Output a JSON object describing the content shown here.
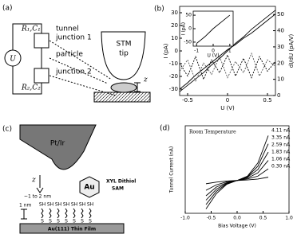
{
  "panel_a": {
    "label": "(a)",
    "source": "U",
    "r1c1": "R₁,C₁",
    "r2c2": "R₂,C₂",
    "tunnel": "tunnel",
    "junction1": "junction 1",
    "particle": "particle",
    "junction2": "junction 2",
    "stm": "STM",
    "tip": "tip",
    "z": "z"
  },
  "panel_c": {
    "label": "(c)",
    "tip": "Pt/Ir",
    "z": "z",
    "gap": "~1 to 2 nm",
    "length": "1 nm",
    "particle": "Au",
    "molecule": "XYL Dithiol",
    "sam": "SAM",
    "substrate": "Au(111) Thin Film",
    "sh_labels": [
      "SH",
      "SH",
      "SH",
      "SH",
      "SH",
      "SH",
      "SH"
    ],
    "s_labels": [
      "S",
      "S",
      "S",
      "S",
      "S",
      "S",
      "S"
    ]
  },
  "chart_data": [
    {
      "type": "line",
      "label": "(b)",
      "xlabel": "U (V)",
      "ylabel": "I (pA)",
      "y2label": "dI/dU (pA/V)",
      "x": [
        -0.6,
        -0.5,
        -0.4,
        -0.3,
        -0.2,
        -0.1,
        0,
        0.1,
        0.2,
        0.3,
        0.4,
        0.5,
        0.6
      ],
      "xlim": [
        -0.6,
        0.6
      ],
      "xticks": [
        -0.5,
        0,
        0.5
      ],
      "ylim": [
        -35,
        35
      ],
      "yticks": [
        30,
        20,
        10,
        0,
        -10,
        -20,
        -30
      ],
      "y2lim": [
        0,
        55
      ],
      "y2ticks": [
        50,
        40,
        30,
        20,
        10,
        0
      ],
      "series": [
        {
          "color": "#000000",
          "values": [
            -32,
            -27,
            -22,
            -17,
            -11,
            -6,
            0,
            6,
            11,
            17,
            22,
            27,
            32
          ]
        },
        {
          "color": "#000000",
          "values": [
            -30,
            -25,
            -19,
            -14,
            -9,
            -4,
            1,
            5,
            10,
            14,
            19,
            24,
            29
          ]
        },
        {
          "color": "#000000",
          "axis": "y2",
          "values": [
            20,
            12,
            24,
            10,
            22,
            14,
            25,
            12,
            23,
            11,
            24,
            15,
            21
          ]
        },
        {
          "color": "#555555",
          "axis": "y2",
          "values": [
            15,
            22,
            9,
            20,
            13,
            24,
            11,
            21,
            14,
            26,
            12,
            22,
            18
          ]
        }
      ]
    },
    {
      "type": "line",
      "xlabel": "U (V)",
      "ylabel": "I (pA)",
      "x": [
        -1,
        -0.5,
        0,
        0.5,
        1
      ],
      "xlim": [
        -1.2,
        1.2
      ],
      "xticks": [
        -1,
        0,
        1
      ],
      "ylim": [
        -65,
        65
      ],
      "yticks": [
        50,
        0,
        -50
      ],
      "series": [
        {
          "color": "#000000",
          "values": [
            -55,
            -30,
            0,
            25,
            50
          ]
        }
      ]
    },
    {
      "type": "line",
      "label": "(d)",
      "xlabel": "Bias Voltage (V)",
      "ylabel": "Tunnel Current (nA)",
      "annotation": "Room Temperature",
      "x": [
        -0.6,
        -0.4,
        -0.2,
        0,
        0.2,
        0.4,
        0.6
      ],
      "xlim": [
        -1,
        1
      ],
      "xticks": [
        {
          "value": -1,
          "label": "-1.0"
        },
        {
          "value": -0.5,
          "label": "-0.5"
        },
        {
          "value": 0,
          "label": "0.0"
        },
        {
          "value": 0.5,
          "label": "0.5"
        },
        {
          "value": 1,
          "label": "1.0"
        }
      ],
      "ylim": [
        -3,
        5
      ],
      "series": [
        {
          "name": "4.11 nA",
          "color": "#000000",
          "values": [
            -2.6,
            -1.2,
            -0.35,
            0,
            0.4,
            1.6,
            4.1
          ]
        },
        {
          "name": "3.35 nA",
          "color": "#000000",
          "values": [
            -2.2,
            -1.0,
            -0.3,
            0,
            0.35,
            1.3,
            3.35
          ]
        },
        {
          "name": "2.59 nA",
          "color": "#000000",
          "values": [
            -1.8,
            -0.8,
            -0.25,
            0,
            0.3,
            1.0,
            2.59
          ]
        },
        {
          "name": "1.83 nA",
          "color": "#000000",
          "values": [
            -1.4,
            -0.6,
            -0.2,
            0,
            0.22,
            0.7,
            1.83
          ]
        },
        {
          "name": "1.06 nA",
          "color": "#000000",
          "values": [
            -0.9,
            -0.4,
            -0.12,
            0,
            0.14,
            0.4,
            1.06
          ]
        },
        {
          "name": "0.30 nA",
          "color": "#000000",
          "values": [
            -0.3,
            -0.15,
            -0.05,
            0,
            0.05,
            0.13,
            0.3
          ]
        }
      ]
    }
  ]
}
